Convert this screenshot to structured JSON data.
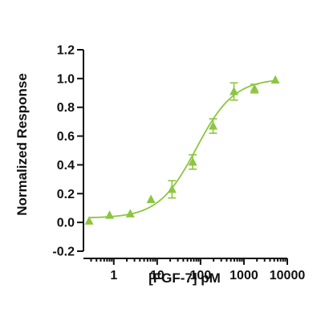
{
  "chart_data": {
    "type": "scatter",
    "title": "",
    "xlabel": "[FGF-7] pM",
    "ylabel": "Normalized Response",
    "x_scale": "log",
    "xlim": [
      0.2,
      10000
    ],
    "ylim": [
      -0.2,
      1.2
    ],
    "x_ticks": [
      1,
      10,
      100,
      1000,
      10000
    ],
    "x_tick_labels": [
      "1",
      "10",
      "100",
      "1000",
      "10000"
    ],
    "y_ticks": [
      -0.2,
      0.0,
      0.2,
      0.4,
      0.6,
      0.8,
      1.0,
      1.2
    ],
    "y_tick_labels": [
      "-0.2",
      "0.0",
      "0.2",
      "0.4",
      "0.6",
      "0.8",
      "1.0",
      "1.2"
    ],
    "grid": false,
    "legend": "none",
    "color": "#8cc63f",
    "marker": "triangle",
    "series": [
      {
        "points": [
          {
            "x": 0.27,
            "y": 0.01,
            "err": 0
          },
          {
            "x": 0.8,
            "y": 0.05,
            "err": 0
          },
          {
            "x": 2.4,
            "y": 0.06,
            "err": 0
          },
          {
            "x": 7.2,
            "y": 0.16,
            "err": 0
          },
          {
            "x": 22,
            "y": 0.23,
            "err": 0.06
          },
          {
            "x": 66,
            "y": 0.42,
            "err": 0.05
          },
          {
            "x": 195,
            "y": 0.67,
            "err": 0.05
          },
          {
            "x": 590,
            "y": 0.91,
            "err": 0.06
          },
          {
            "x": 1750,
            "y": 0.93,
            "err": 0.03
          },
          {
            "x": 5300,
            "y": 0.99,
            "err": 0
          }
        ],
        "fit": {
          "bottom": 0.03,
          "top": 1.0,
          "ec50": 80,
          "hill": 1.0
        }
      }
    ]
  }
}
